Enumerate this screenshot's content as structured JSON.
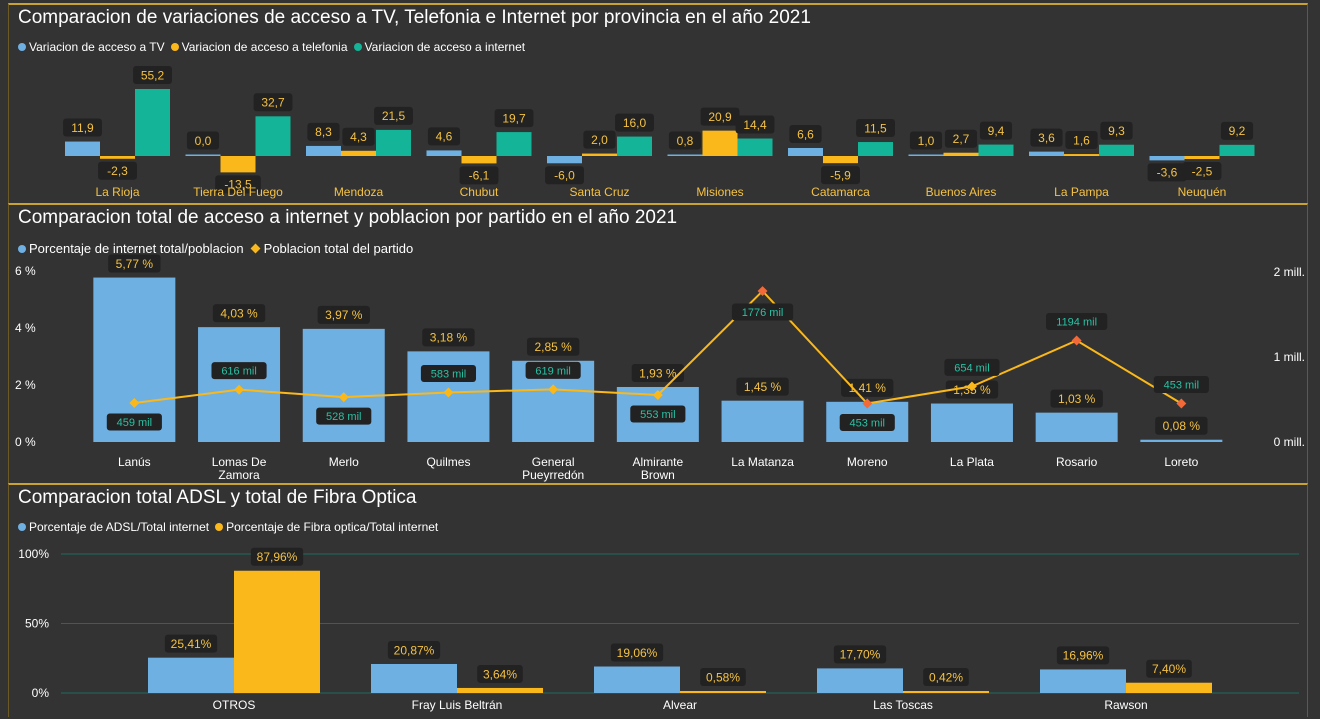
{
  "colors": {
    "blue": "#6fb0e3",
    "orange": "#fbb81a",
    "teal": "#13b497",
    "line_marker": "#f06a3a",
    "label_bg": "#222222",
    "accent": "#c8a232"
  },
  "chart_data": [
    {
      "type": "bar",
      "title": "Comparacion de variaciones de acceso a TV, Telefonia e Internet por provincia en el año 2021",
      "categories": [
        "La Rioja",
        "Tierra Del Fuego",
        "Mendoza",
        "Chubut",
        "Santa Cruz",
        "Misiones",
        "Catamarca",
        "Buenos Aires",
        "La Pampa",
        "Neuquén"
      ],
      "series": [
        {
          "name": "Variacion de acceso a TV",
          "values": [
            11.9,
            0.0,
            8.3,
            4.6,
            -6.0,
            0.8,
            6.6,
            1.0,
            3.6,
            -3.6
          ],
          "labels": [
            "11,9",
            "0,0",
            "8,3",
            "4,6",
            "-6,0",
            "0,8",
            "6,6",
            "1,0",
            "3,6",
            "-3,6"
          ]
        },
        {
          "name": "Variacion de acceso a telefonia",
          "values": [
            -2.3,
            -13.5,
            4.3,
            -6.1,
            2.0,
            20.9,
            -5.9,
            2.7,
            1.6,
            -2.5
          ],
          "labels": [
            "-2,3",
            "-13,5",
            "4,3",
            "-6,1",
            "2,0",
            "20,9",
            "-5,9",
            "2,7",
            "1,6",
            "-2,5"
          ]
        },
        {
          "name": "Variacion de acceso a internet",
          "values": [
            55.2,
            32.7,
            21.5,
            19.7,
            16.0,
            14.4,
            11.5,
            9.4,
            9.3,
            9.2
          ],
          "labels": [
            "55,2",
            "32,7",
            "21,5",
            "19,7",
            "16,0",
            "14,4",
            "11,5",
            "9,4",
            "9,3",
            "9,2"
          ]
        }
      ],
      "grid": false,
      "legend": "top-left"
    },
    {
      "type": "bar",
      "title": "Comparacion total de acceso a internet y poblacion por partido en el año 2021",
      "categories": [
        "Lanús",
        "Lomas De Zamora",
        "Merlo",
        "Quilmes",
        "General Pueyrredón",
        "Almirante Brown",
        "La Matanza",
        "Moreno",
        "La Plata",
        "Rosario",
        "Loreto"
      ],
      "y_ticks_left": [
        "6 %",
        "4 %",
        "2 %",
        "0 %"
      ],
      "ylim_left": [
        0,
        6
      ],
      "y_ticks_right": [
        "2 mill.",
        "1 mill.",
        "0 mill."
      ],
      "ylim_right": [
        0,
        2000
      ],
      "series": [
        {
          "name": "Porcentaje de internet total/poblacion",
          "values": [
            5.77,
            4.03,
            3.97,
            3.18,
            2.85,
            1.93,
            1.45,
            1.41,
            1.35,
            1.03,
            0.08
          ],
          "labels": [
            "5,77 %",
            "4,03 %",
            "3,97 %",
            "3,18 %",
            "2,85 %",
            "1,93 %",
            "1,45 %",
            "1,41 %",
            "1,35 %",
            "1,03 %",
            "0,08 %"
          ]
        },
        {
          "name": "Poblacion total del partido",
          "values": [
            459,
            616,
            528,
            583,
            619,
            553,
            1776,
            453,
            654,
            1194,
            453
          ],
          "labels": [
            "459 mil",
            "616 mil",
            "528 mil",
            "583 mil",
            "619 mil",
            "553 mil",
            "1776 mil",
            "453 mil",
            "654 mil",
            "1194 mil",
            "453 mil"
          ]
        }
      ],
      "grid": false,
      "legend": "top-left"
    },
    {
      "type": "bar",
      "title": "Comparacion total ADSL y total de Fibra Optica",
      "categories": [
        "OTROS",
        "Fray Luis Beltrán",
        "Alvear",
        "Las Toscas",
        "Rawson"
      ],
      "y_ticks": [
        "100%",
        "50%",
        "0%"
      ],
      "ylim": [
        0,
        100
      ],
      "series": [
        {
          "name": "Porcentaje de ADSL/Total internet",
          "values": [
            25.41,
            20.87,
            19.06,
            17.7,
            16.96
          ],
          "labels": [
            "25,41%",
            "20,87%",
            "19,06%",
            "17,70%",
            "16,96%"
          ]
        },
        {
          "name": "Porcentaje de Fibra optica/Total internet",
          "values": [
            87.96,
            3.64,
            0.58,
            0.42,
            7.4
          ],
          "labels": [
            "87,96%",
            "3,64%",
            "0,58%",
            "0,42%",
            "7,40%"
          ]
        }
      ],
      "grid": true,
      "legend": "top-left"
    }
  ]
}
